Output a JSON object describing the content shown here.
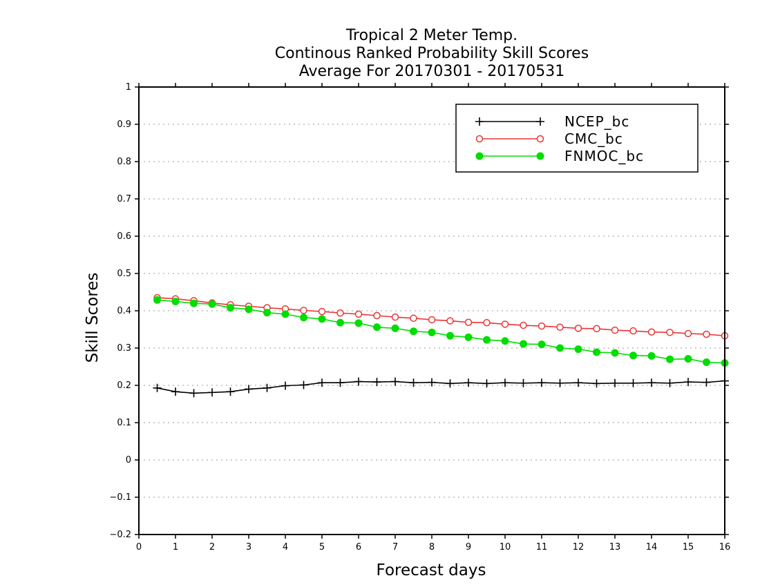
{
  "chart_data": {
    "type": "line",
    "title_lines": [
      "Tropical 2 Meter Temp.",
      "Continous Ranked Probability Skill Scores",
      "Average For 20170301 - 20170531"
    ],
    "xlabel": "Forecast days",
    "ylabel": "Skill Scores",
    "xlim": [
      0,
      16
    ],
    "ylim": [
      -0.2,
      1
    ],
    "xticks": [
      "0",
      "1",
      "2",
      "3",
      "4",
      "5",
      "6",
      "7",
      "8",
      "9",
      "10",
      "11",
      "12",
      "13",
      "14",
      "15",
      "16"
    ],
    "yticks": [
      "1",
      "0.9",
      "0.8",
      "0.7",
      "0.6",
      "0.5",
      "0.4",
      "0.3",
      "0.2",
      "0.1",
      "0",
      "-0.1",
      "-0.2"
    ],
    "grid": true,
    "legend_position": "top-right",
    "x": [
      0.5,
      1,
      1.5,
      2,
      2.5,
      3,
      3.5,
      4,
      4.5,
      5,
      5.5,
      6,
      6.5,
      7,
      7.5,
      8,
      8.5,
      9,
      9.5,
      10,
      10.5,
      11,
      11.5,
      12,
      12.5,
      13,
      13.5,
      14,
      14.5,
      15,
      15.5,
      16
    ],
    "series": [
      {
        "name": "NCEP_bc",
        "color": "#000000",
        "marker": "plus",
        "values": [
          0.193,
          0.183,
          0.179,
          0.181,
          0.183,
          0.19,
          0.193,
          0.199,
          0.201,
          0.207,
          0.207,
          0.21,
          0.209,
          0.21,
          0.207,
          0.208,
          0.205,
          0.207,
          0.205,
          0.207,
          0.206,
          0.207,
          0.206,
          0.207,
          0.205,
          0.206,
          0.206,
          0.207,
          0.206,
          0.209,
          0.208,
          0.212
        ]
      },
      {
        "name": "CMC_bc",
        "color": "#ee3333",
        "marker": "open-circle",
        "values": [
          0.435,
          0.432,
          0.427,
          0.421,
          0.416,
          0.412,
          0.408,
          0.405,
          0.401,
          0.398,
          0.394,
          0.391,
          0.387,
          0.383,
          0.38,
          0.376,
          0.373,
          0.369,
          0.368,
          0.364,
          0.361,
          0.359,
          0.356,
          0.353,
          0.352,
          0.348,
          0.346,
          0.343,
          0.342,
          0.339,
          0.337,
          0.333
        ]
      },
      {
        "name": "FNMOC_bc",
        "color": "#00dd00",
        "marker": "filled-circle",
        "values": [
          0.429,
          0.425,
          0.42,
          0.418,
          0.408,
          0.404,
          0.395,
          0.391,
          0.382,
          0.378,
          0.368,
          0.367,
          0.356,
          0.353,
          0.345,
          0.342,
          0.333,
          0.329,
          0.322,
          0.319,
          0.311,
          0.31,
          0.3,
          0.297,
          0.289,
          0.287,
          0.28,
          0.279,
          0.27,
          0.271,
          0.262,
          0.26
        ]
      }
    ]
  }
}
